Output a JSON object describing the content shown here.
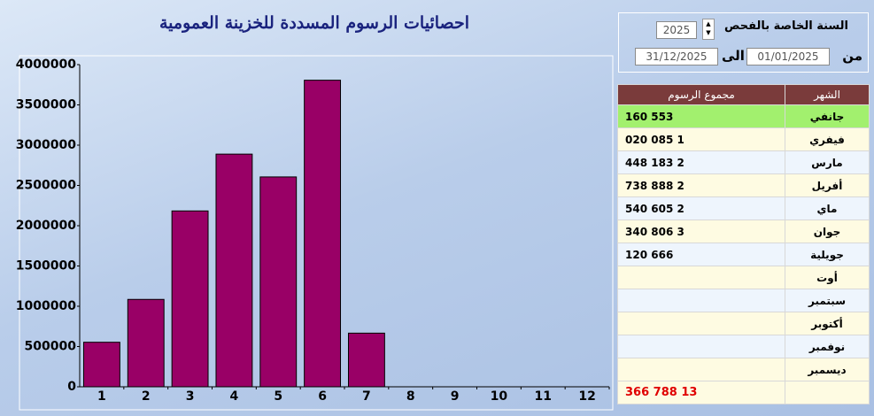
{
  "chart_data": {
    "type": "bar",
    "title": "احصائيات الرسوم المسددة للخزينة العمومية",
    "categories": [
      1,
      2,
      3,
      4,
      5,
      6,
      7,
      8,
      9,
      10,
      11,
      12
    ],
    "values": [
      553160,
      1085020,
      2183448,
      2888738,
      2605540,
      3806340,
      666120,
      null,
      null,
      null,
      null,
      null
    ],
    "color": "#990066",
    "ylim": [
      0,
      4000000
    ],
    "yticks": [
      0,
      500000,
      1000000,
      1500000,
      2000000,
      2500000,
      3000000,
      3500000,
      4000000
    ],
    "grid": false
  },
  "filter": {
    "year_label": "السنة الخاصة بالفحص",
    "year": "2025",
    "from_label": "من",
    "from": "01/01/2025",
    "to_label": "الى",
    "to": "31/12/2025"
  },
  "table": {
    "headers": [
      "الشهر",
      "مجموع الرسوم"
    ],
    "rows": [
      [
        "جانفي",
        "553 160"
      ],
      [
        "فيفري",
        "1 085 020"
      ],
      [
        "مارس",
        "2 183 448"
      ],
      [
        "أفريل",
        "2 888 738"
      ],
      [
        "ماي",
        "2 605 540"
      ],
      [
        "جوان",
        "3 806 340"
      ],
      [
        "جويلية",
        "666 120"
      ],
      [
        "أوت"
      ],
      [
        "سبتمبر"
      ],
      [
        "أكتوبر"
      ],
      [
        "نوفمبر"
      ],
      [
        "ديسمبر"
      ]
    ],
    "total": "13 788 366"
  }
}
